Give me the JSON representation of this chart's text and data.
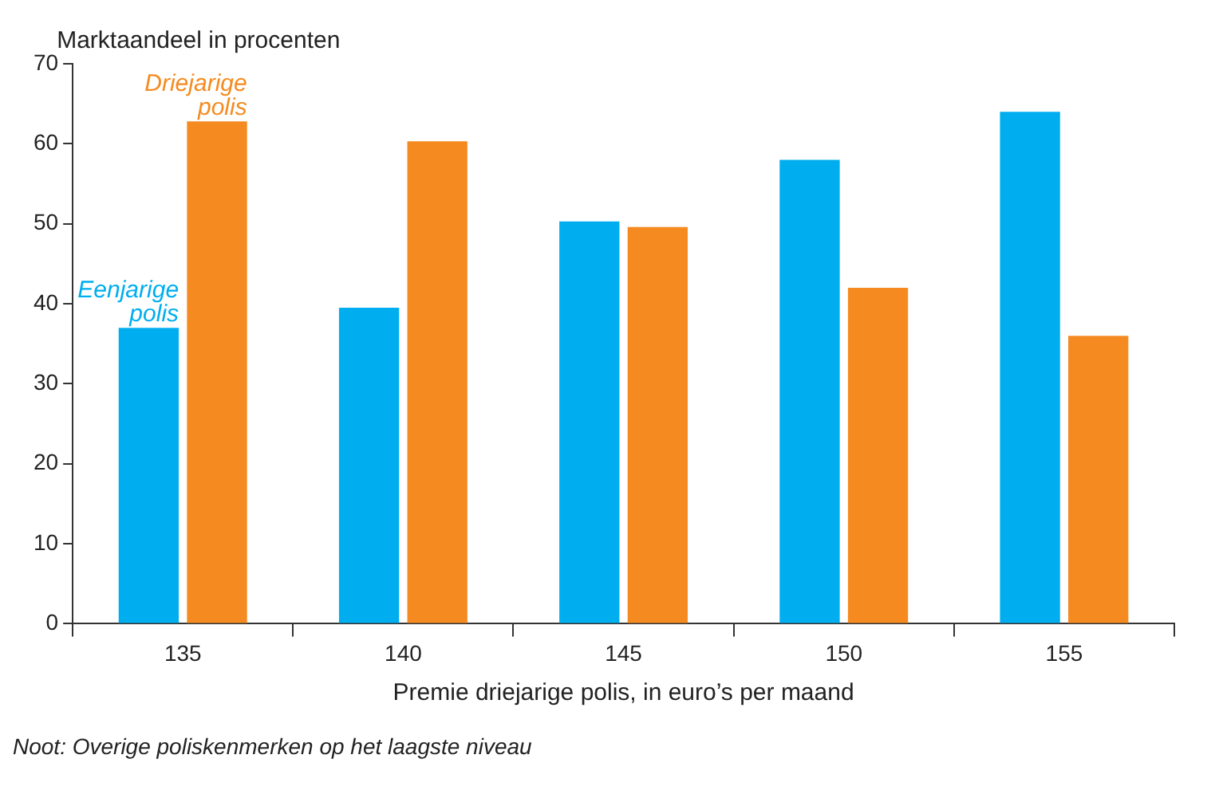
{
  "chart_data": {
    "type": "bar",
    "ylabel": "Marktaandeel in procenten",
    "xlabel": "Premie driejarige polis, in euro’s per maand",
    "categories": [
      "135",
      "140",
      "145",
      "150",
      "155"
    ],
    "series": [
      {
        "name": "Eenjarige polis",
        "color": "#00aeef",
        "values": [
          37,
          39.5,
          50.3,
          58,
          64
        ]
      },
      {
        "name": "Driejarige polis",
        "color": "#f58b20",
        "values": [
          62.8,
          60.3,
          49.6,
          42,
          36
        ]
      }
    ],
    "ylim": [
      0,
      70
    ],
    "yticks": [
      0,
      10,
      20,
      30,
      40,
      50,
      60,
      70
    ],
    "grid": false,
    "legend": false,
    "annotations": [
      "Noot: Overige poliskenmerken op het laagste niveau"
    ]
  }
}
